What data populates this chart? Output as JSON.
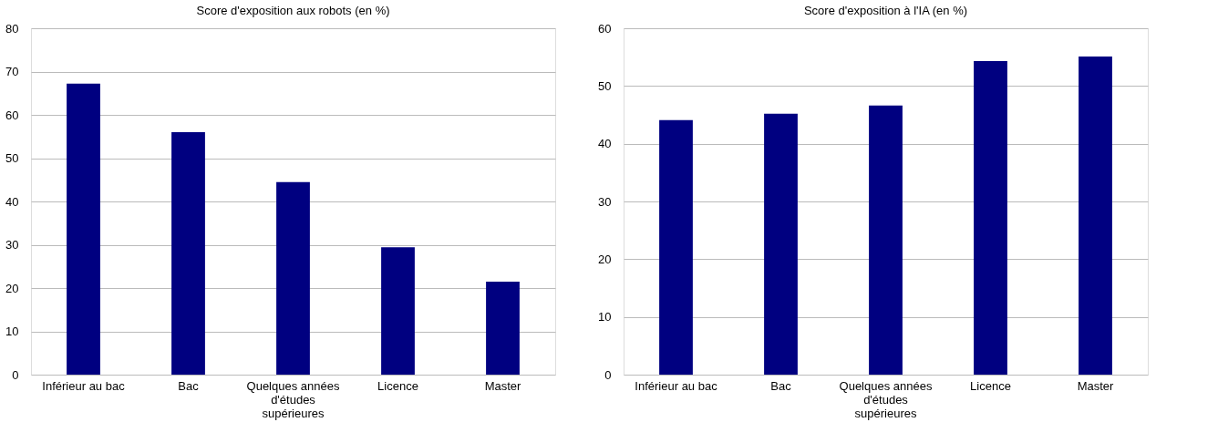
{
  "chart_data": [
    {
      "type": "bar",
      "title": "Score d'exposition aux robots (en %)",
      "categories": [
        "Inférieur au bac",
        "Bac",
        "Quelques années d'études supérieures",
        "Licence",
        "Master"
      ],
      "values": [
        67.2,
        56.0,
        44.5,
        29.4,
        21.5
      ],
      "color": "#000080",
      "ylim": [
        0,
        80
      ],
      "yticks": [
        0,
        10,
        20,
        30,
        40,
        50,
        60,
        70,
        80
      ],
      "grid": "y"
    },
    {
      "type": "bar",
      "title": "Score d'exposition à l'IA (en %)",
      "categories": [
        "Inférieur au bac",
        "Bac",
        "Quelques années d'études supérieures",
        "Licence",
        "Master"
      ],
      "values": [
        44.1,
        45.2,
        46.6,
        54.3,
        55.1
      ],
      "color": "#000080",
      "ylim": [
        0,
        60
      ],
      "yticks": [
        0,
        10,
        20,
        30,
        40,
        50,
        60
      ],
      "grid": "y"
    }
  ]
}
